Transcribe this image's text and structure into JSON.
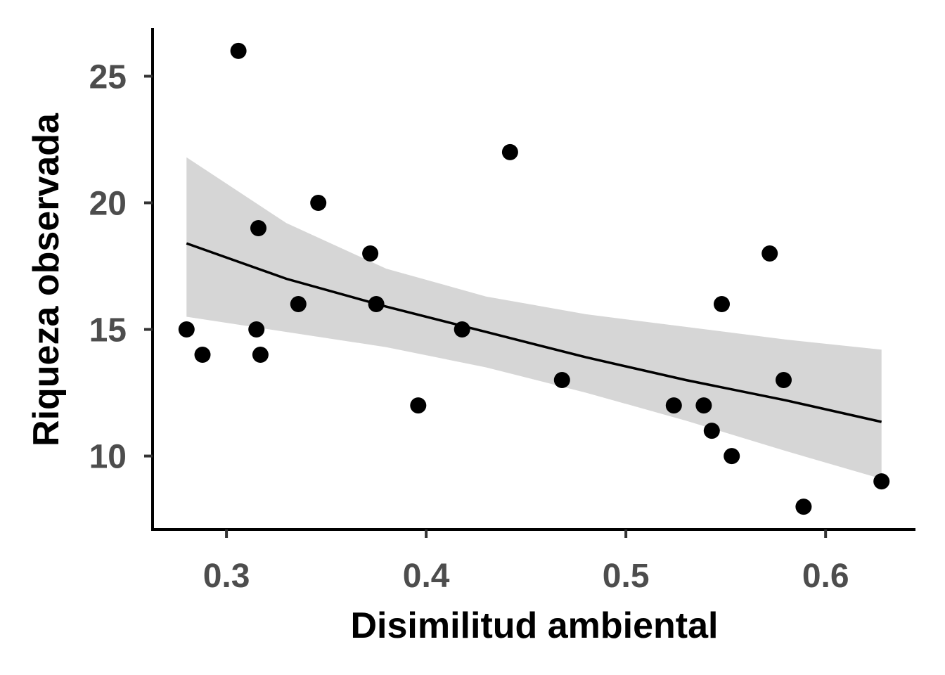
{
  "chart_data": {
    "type": "scatter",
    "title": "",
    "xlabel": "Disimilitud ambiental",
    "ylabel": "Riqueza observada",
    "xlim": [
      0.263,
      0.645
    ],
    "ylim": [
      7.1,
      26.9
    ],
    "xticks": [
      0.3,
      0.4,
      0.5,
      0.6
    ],
    "xtick_labels": [
      "0.3",
      "0.4",
      "0.5",
      "0.6"
    ],
    "yticks": [
      10,
      15,
      20,
      25
    ],
    "ytick_labels": [
      "10",
      "15",
      "20",
      "25"
    ],
    "grid": false,
    "legend": "none",
    "point_color": "#000000",
    "points": [
      {
        "x": 0.28,
        "y": 15
      },
      {
        "x": 0.288,
        "y": 14
      },
      {
        "x": 0.306,
        "y": 26
      },
      {
        "x": 0.315,
        "y": 15
      },
      {
        "x": 0.316,
        "y": 19
      },
      {
        "x": 0.317,
        "y": 14
      },
      {
        "x": 0.336,
        "y": 16
      },
      {
        "x": 0.346,
        "y": 20
      },
      {
        "x": 0.372,
        "y": 18
      },
      {
        "x": 0.375,
        "y": 16
      },
      {
        "x": 0.396,
        "y": 12
      },
      {
        "x": 0.418,
        "y": 15
      },
      {
        "x": 0.442,
        "y": 22
      },
      {
        "x": 0.468,
        "y": 13
      },
      {
        "x": 0.524,
        "y": 12
      },
      {
        "x": 0.539,
        "y": 12
      },
      {
        "x": 0.543,
        "y": 11
      },
      {
        "x": 0.548,
        "y": 16
      },
      {
        "x": 0.553,
        "y": 10
      },
      {
        "x": 0.572,
        "y": 18
      },
      {
        "x": 0.579,
        "y": 13
      },
      {
        "x": 0.589,
        "y": 8
      },
      {
        "x": 0.628,
        "y": 9
      }
    ],
    "fit": {
      "color": "#000000",
      "band_color": "#d6d6d6",
      "x": [
        0.28,
        0.33,
        0.38,
        0.43,
        0.48,
        0.53,
        0.58,
        0.628
      ],
      "y": [
        18.4,
        17.0,
        15.9,
        14.9,
        13.9,
        13.0,
        12.2,
        11.35
      ],
      "lower": [
        15.5,
        14.9,
        14.3,
        13.5,
        12.5,
        11.4,
        10.2,
        9.1
      ],
      "upper": [
        21.8,
        19.2,
        17.4,
        16.3,
        15.6,
        15.1,
        14.6,
        14.2
      ]
    }
  }
}
